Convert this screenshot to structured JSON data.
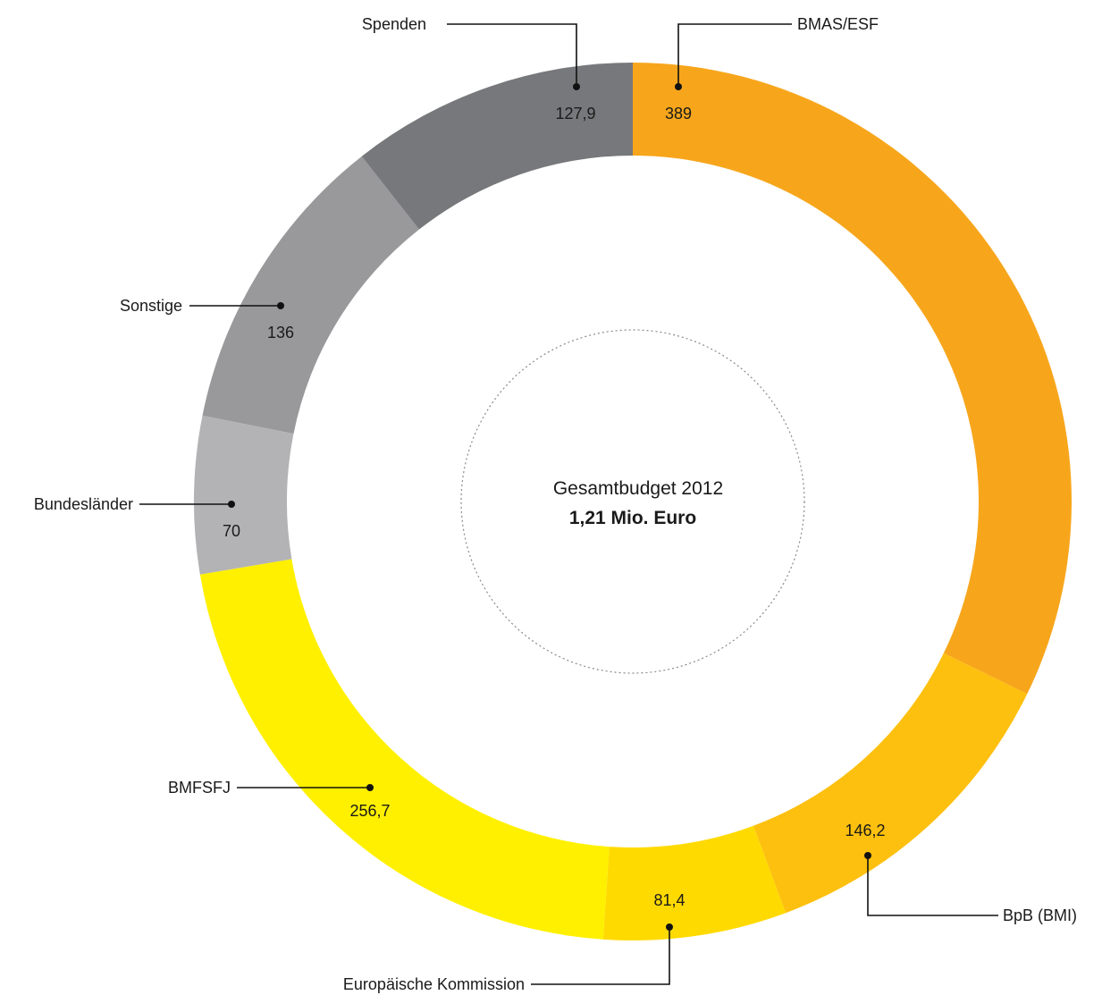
{
  "chart_data": {
    "type": "pie",
    "variant": "donut",
    "center_title": "Gesamtbudget 2012",
    "center_subtitle": "1,21 Mio. Euro",
    "slices": [
      {
        "name": "BMAS/ESF",
        "value": 389,
        "value_label": "389",
        "color": "#F7A61C"
      },
      {
        "name": "BpB (BMI)",
        "value": 146.2,
        "value_label": "146,2",
        "color": "#FDC00F"
      },
      {
        "name": "Europäische Kommission",
        "value": 81.4,
        "value_label": "81,4",
        "color": "#FFDA00"
      },
      {
        "name": "BMFSFJ",
        "value": 256.7,
        "value_label": "256,7",
        "color": "#FFF000"
      },
      {
        "name": "Bundesländer",
        "value": 70,
        "value_label": "70",
        "color": "#B3B3B5"
      },
      {
        "name": "Sonstige",
        "value": 136,
        "value_label": "136",
        "color": "#99999C"
      },
      {
        "name": "Spenden",
        "value": 127.9,
        "value_label": "127,9",
        "color": "#77787B"
      }
    ]
  }
}
